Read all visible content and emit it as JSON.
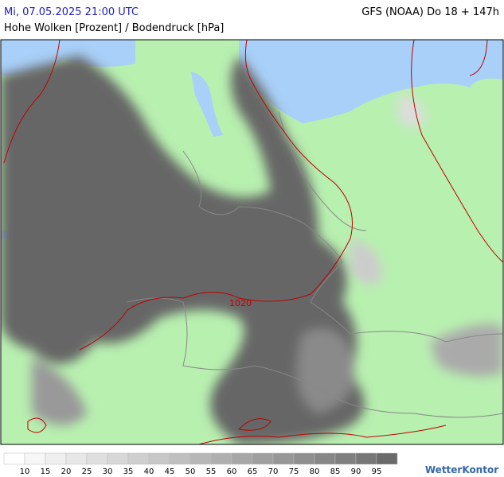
{
  "header": {
    "datetime": "Mi, 07.05.2025 21:00 UTC",
    "model": "GFS (NOAA) Do 18 + 147h",
    "subtitle": "Hohe Wolken [Prozent] / Bodendruck [hPa]"
  },
  "map": {
    "isobar_label": "1020"
  },
  "legend": {
    "labels": [
      "10",
      "15",
      "20",
      "25",
      "30",
      "35",
      "40",
      "45",
      "50",
      "55",
      "60",
      "65",
      "70",
      "75",
      "80",
      "85",
      "90",
      "95"
    ],
    "colors": [
      "#ffffff",
      "#f7f7f7",
      "#efefef",
      "#e7e7e7",
      "#dfdfdf",
      "#d7d7d7",
      "#cfcfcf",
      "#c7c7c7",
      "#bfbfbf",
      "#b7b7b7",
      "#afafaf",
      "#a7a7a7",
      "#9f9f9f",
      "#979797",
      "#8f8f8f",
      "#878787",
      "#7f7f7f",
      "#777777",
      "#6a6a6a"
    ]
  },
  "logo": "WetterKontor"
}
